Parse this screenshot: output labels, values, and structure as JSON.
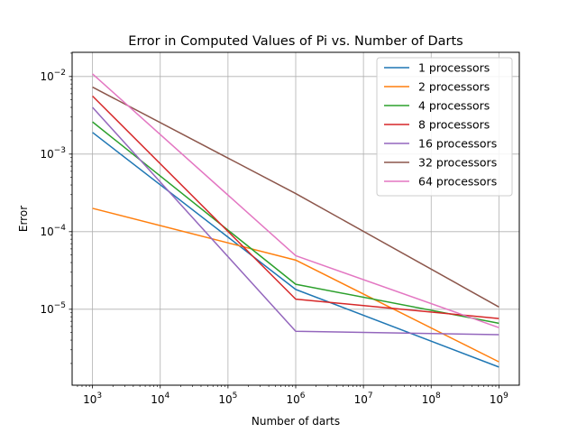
{
  "chart_data": {
    "type": "line",
    "title": "Error in Computed Values of Pi vs. Number of Darts",
    "xlabel": "Number of darts",
    "ylabel": "Error",
    "xscale": "log",
    "yscale": "log",
    "xlim": [
      500,
      2000000000
    ],
    "ylim": [
      1.05e-06,
      0.0205
    ],
    "grid": true,
    "legend_position": "top-right",
    "x": [
      1000,
      1000000,
      1000000000
    ],
    "series": [
      {
        "name": "1 processors",
        "color": "#1f77b4",
        "values": [
          0.0019,
          1.8e-05,
          1.8e-06
        ]
      },
      {
        "name": "2 processors",
        "color": "#ff7f0e",
        "values": [
          0.0002,
          4.3e-05,
          2.1e-06
        ]
      },
      {
        "name": "4 processors",
        "color": "#2ca02c",
        "values": [
          0.0026,
          2.1e-05,
          6.6e-06
        ]
      },
      {
        "name": "8 processors",
        "color": "#d62728",
        "values": [
          0.0056,
          1.35e-05,
          7.6e-06
        ]
      },
      {
        "name": "16 processors",
        "color": "#9467bd",
        "values": [
          0.004,
          5.2e-06,
          4.7e-06
        ]
      },
      {
        "name": "32 processors",
        "color": "#8c564b",
        "values": [
          0.0073,
          0.00031,
          1.07e-05
        ]
      },
      {
        "name": "64 processors",
        "color": "#e377c2",
        "values": [
          0.0108,
          4.9e-05,
          5.8e-06
        ]
      }
    ],
    "x_ticks": [
      {
        "value": 1000,
        "base": "10",
        "exp": "3"
      },
      {
        "value": 10000,
        "base": "10",
        "exp": "4"
      },
      {
        "value": 100000,
        "base": "10",
        "exp": "5"
      },
      {
        "value": 1000000,
        "base": "10",
        "exp": "6"
      },
      {
        "value": 10000000,
        "base": "10",
        "exp": "7"
      },
      {
        "value": 100000000,
        "base": "10",
        "exp": "8"
      },
      {
        "value": 1000000000,
        "base": "10",
        "exp": "9"
      }
    ],
    "y_ticks": [
      {
        "value": 1e-05,
        "base": "10",
        "exp": "−5"
      },
      {
        "value": 0.0001,
        "base": "10",
        "exp": "−4"
      },
      {
        "value": 0.001,
        "base": "10",
        "exp": "−3"
      },
      {
        "value": 0.01,
        "base": "10",
        "exp": "−2"
      }
    ]
  }
}
